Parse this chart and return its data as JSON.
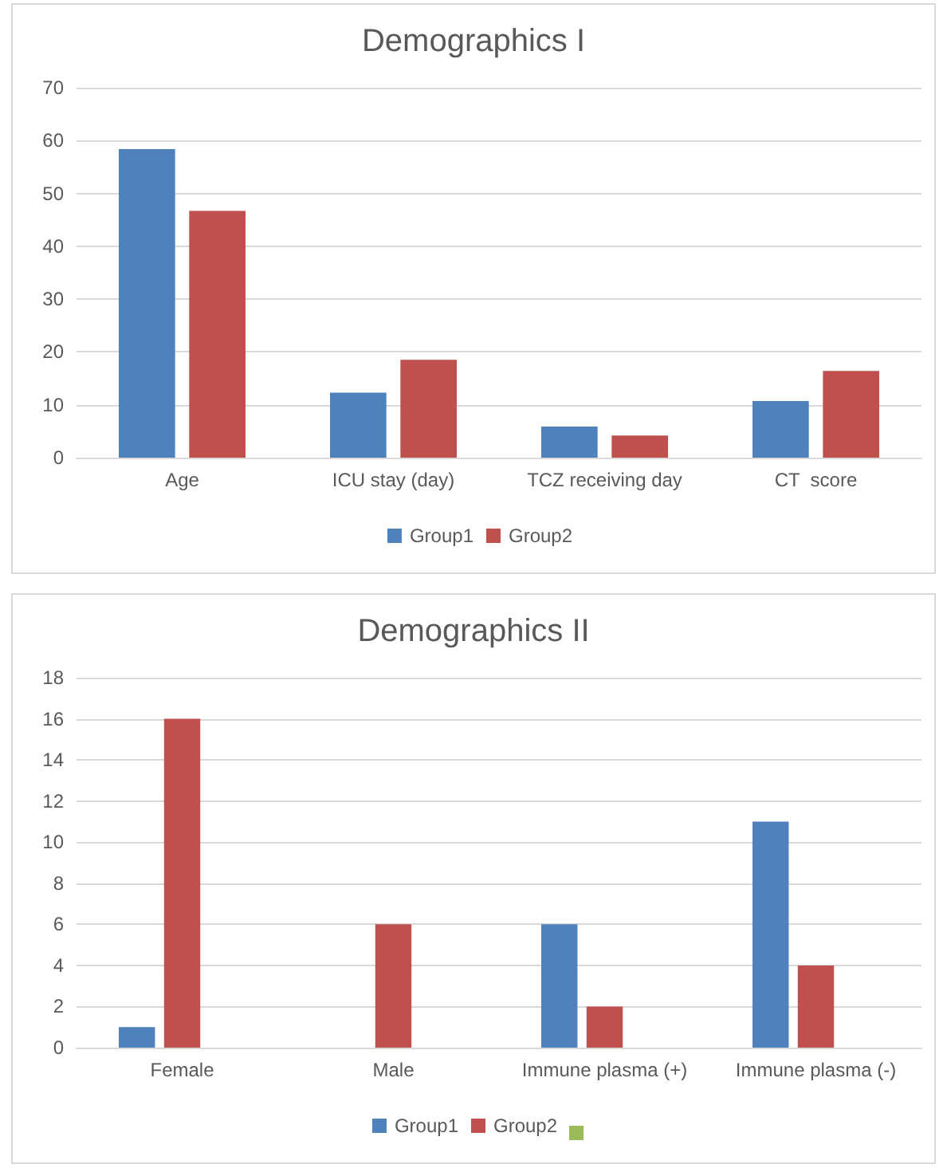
{
  "chart_data": [
    {
      "type": "bar",
      "title": "Demographics I",
      "categories": [
        "Age",
        "ICU stay (day)",
        "TCZ receiving day",
        "CT  score"
      ],
      "series": [
        {
          "name": "Group1",
          "color": "#4f81bd",
          "values": [
            58.4,
            12.3,
            5.9,
            10.7
          ]
        },
        {
          "name": "Group2",
          "color": "#c0504d",
          "values": [
            46.7,
            18.5,
            4.2,
            16.4
          ]
        }
      ],
      "ylim": [
        0,
        70
      ],
      "yticks": [
        0,
        10,
        20,
        30,
        40,
        50,
        60,
        70
      ],
      "grid": "y",
      "legend": "bottom"
    },
    {
      "type": "bar",
      "title": "Demographics II",
      "categories": [
        "Female",
        "Male",
        "Immune plasma (+)",
        "Immune plasma (-)"
      ],
      "series": [
        {
          "name": "Group1",
          "color": "#4f81bd",
          "values": [
            1,
            0,
            6,
            11
          ]
        },
        {
          "name": "Group2",
          "color": "#c0504d",
          "values": [
            16,
            6,
            2,
            4
          ]
        },
        {
          "color": "#9bbb59",
          "values": [
            null,
            null,
            null,
            null
          ]
        }
      ],
      "ylim": [
        0,
        18
      ],
      "yticks": [
        0,
        2,
        4,
        6,
        8,
        10,
        12,
        14,
        16,
        18
      ],
      "grid": "y",
      "legend": "bottom"
    }
  ]
}
